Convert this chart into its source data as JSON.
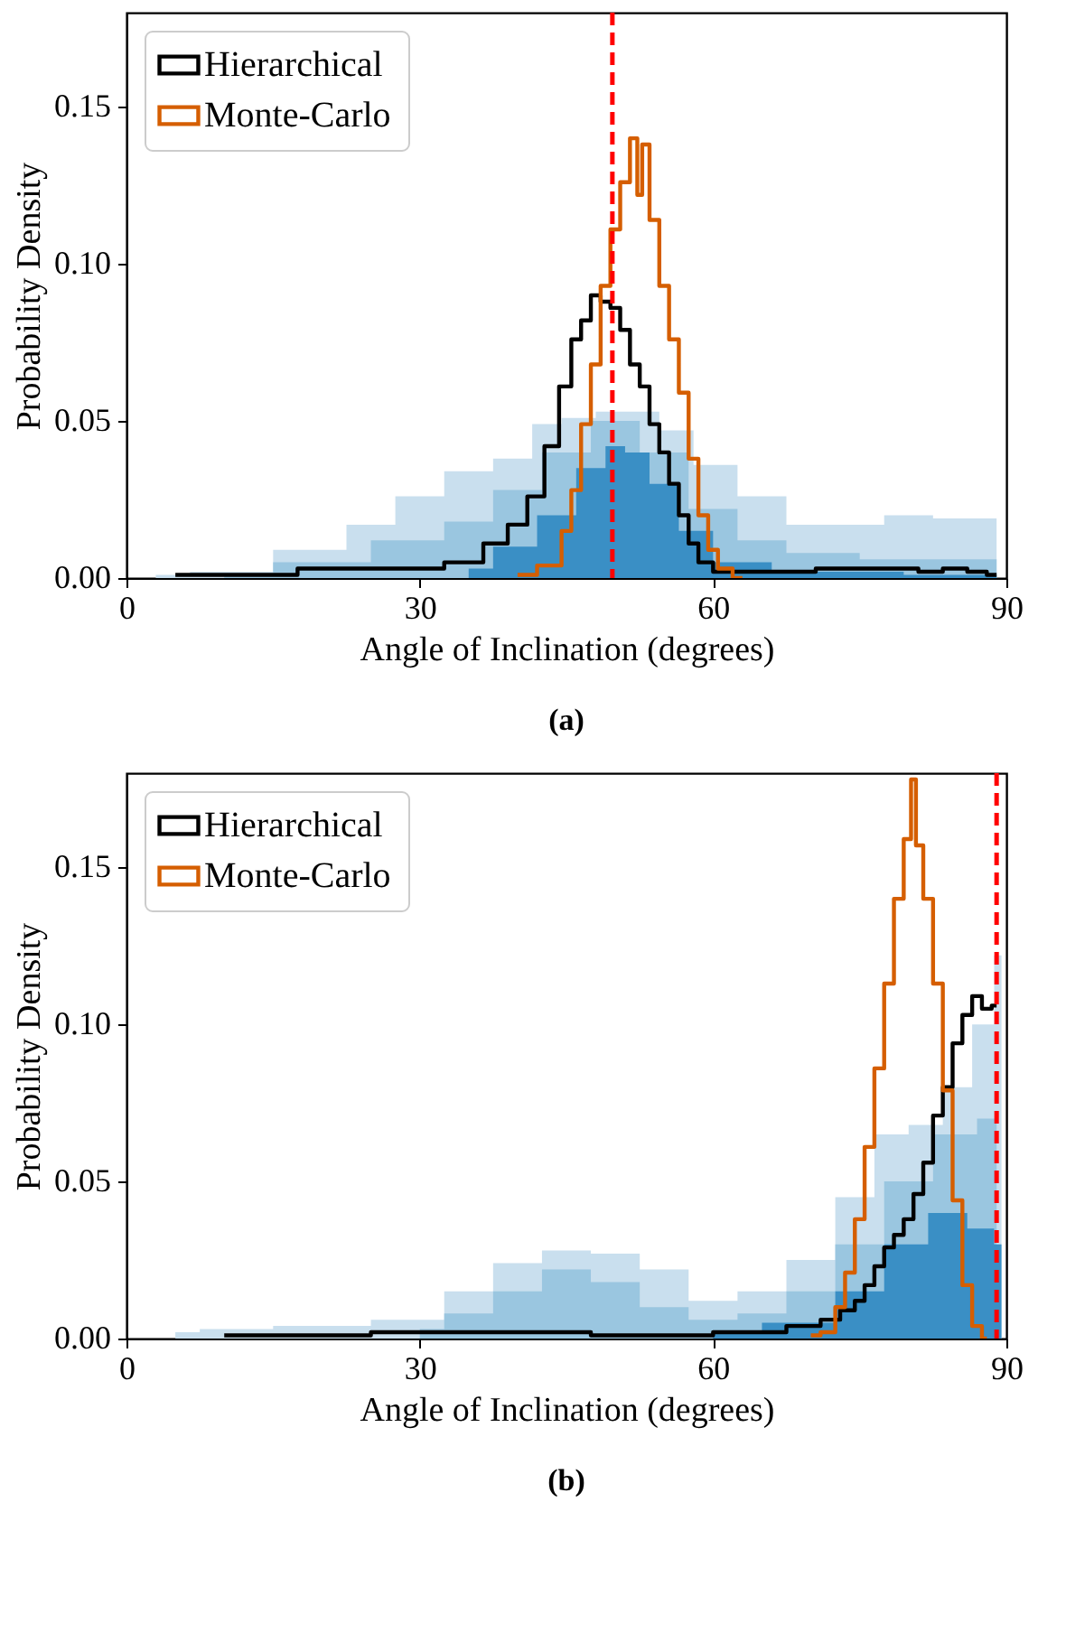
{
  "chart_data": [
    {
      "type": "step",
      "xlabel": "Angle of Inclination (degrees)",
      "ylabel": "Probability Density",
      "xlim": [
        0,
        90
      ],
      "xticks": [
        0,
        30,
        60,
        90
      ],
      "ylim": [
        0,
        0.18
      ],
      "yticks": [
        {
          "value": 0,
          "label": "0.00"
        },
        {
          "value": 0.05,
          "label": "0.05"
        },
        {
          "value": 0.1,
          "label": "0.10"
        },
        {
          "value": 0.15,
          "label": "0.15"
        }
      ],
      "legend": "top left",
      "grid": false,
      "annotations": [
        "(a)"
      ],
      "ref_lines": [
        {
          "axis": "x",
          "value": 49.7,
          "color": "#ff0000",
          "line_style": "dashed"
        }
      ],
      "series": [
        {
          "type": "area",
          "color": "#c9dfee",
          "x": [
            3,
            10,
            20,
            25,
            30,
            35,
            40,
            43,
            46,
            50,
            53,
            56,
            60,
            65,
            70,
            75,
            80,
            85,
            89
          ],
          "values": [
            0.001,
            0.002,
            0.009,
            0.017,
            0.026,
            0.034,
            0.038,
            0.049,
            0.051,
            0.053,
            0.053,
            0.047,
            0.036,
            0.026,
            0.017,
            0.017,
            0.02,
            0.019,
            0.019
          ]
        },
        {
          "type": "area",
          "color": "#9ac6e0",
          "x": [
            10,
            20,
            30,
            35,
            40,
            45,
            50,
            55,
            60,
            65,
            70,
            80,
            89
          ],
          "values": [
            0.001,
            0.005,
            0.012,
            0.018,
            0.028,
            0.04,
            0.05,
            0.04,
            0.022,
            0.012,
            0.008,
            0.006,
            0.006
          ]
        },
        {
          "type": "area",
          "color": "#3a8fc5",
          "x": [
            35,
            40,
            44,
            48,
            50,
            52,
            55,
            58,
            62,
            70,
            89
          ],
          "values": [
            0.003,
            0.01,
            0.02,
            0.035,
            0.042,
            0.04,
            0.03,
            0.015,
            0.005,
            0.002,
            0.001
          ]
        },
        {
          "type": "step",
          "name": "Hierarchical",
          "color": "#000000",
          "x": [
            5,
            30,
            35,
            38,
            40,
            42,
            43.5,
            45,
            46,
            47,
            48,
            49,
            50,
            51,
            52,
            53,
            54,
            55,
            56,
            57,
            58,
            59,
            61,
            80,
            82,
            85,
            87,
            89
          ],
          "values": [
            0.001,
            0.003,
            0.005,
            0.011,
            0.017,
            0.026,
            0.042,
            0.061,
            0.076,
            0.082,
            0.09,
            0.088,
            0.086,
            0.079,
            0.068,
            0.061,
            0.049,
            0.04,
            0.03,
            0.02,
            0.011,
            0.005,
            0.002,
            0.003,
            0.002,
            0.003,
            0.002,
            0.001
          ]
        },
        {
          "type": "step",
          "name": "Monte-Carlo",
          "color": "#d55e00",
          "x": [
            40,
            44,
            45,
            46,
            47,
            48,
            49,
            50,
            51,
            52,
            52.5,
            53,
            54,
            55,
            56,
            57,
            58,
            59,
            60,
            61,
            63
          ],
          "values": [
            0.001,
            0.004,
            0.015,
            0.028,
            0.049,
            0.068,
            0.093,
            0.111,
            0.126,
            0.14,
            0.122,
            0.138,
            0.114,
            0.093,
            0.076,
            0.059,
            0.038,
            0.02,
            0.009,
            0.003,
            0.0
          ]
        }
      ]
    },
    {
      "type": "step",
      "xlabel": "Angle of Inclination (degrees)",
      "ylabel": "Probability Density",
      "xlim": [
        0,
        90
      ],
      "xticks": [
        0,
        30,
        60,
        90
      ],
      "ylim": [
        0,
        0.18
      ],
      "yticks": [
        {
          "value": 0,
          "label": "0.00"
        },
        {
          "value": 0.05,
          "label": "0.05"
        },
        {
          "value": 0.1,
          "label": "0.10"
        },
        {
          "value": 0.15,
          "label": "0.15"
        }
      ],
      "legend": "top left",
      "grid": false,
      "annotations": [
        "(b)"
      ],
      "ref_lines": [
        {
          "axis": "x",
          "value": 89.0,
          "color": "#ff0000",
          "line_style": "dashed"
        }
      ],
      "series": [
        {
          "type": "area",
          "color": "#c9dfee",
          "x": [
            5,
            10,
            20,
            30,
            35,
            40,
            45,
            50,
            55,
            60,
            65,
            70,
            75,
            78,
            82,
            85,
            88,
            89.5
          ],
          "values": [
            0.002,
            0.003,
            0.004,
            0.006,
            0.015,
            0.024,
            0.028,
            0.027,
            0.022,
            0.012,
            0.015,
            0.025,
            0.045,
            0.065,
            0.068,
            0.08,
            0.1,
            0.122
          ]
        },
        {
          "type": "area",
          "color": "#9ac6e0",
          "x": [
            30,
            35,
            40,
            45,
            50,
            55,
            60,
            65,
            70,
            75,
            80,
            85,
            89
          ],
          "values": [
            0.003,
            0.008,
            0.015,
            0.022,
            0.018,
            0.01,
            0.006,
            0.008,
            0.015,
            0.03,
            0.05,
            0.065,
            0.07
          ]
        },
        {
          "type": "area",
          "color": "#3a8fc5",
          "x": [
            60,
            70,
            75,
            80,
            84,
            88,
            89.5
          ],
          "values": [
            0.002,
            0.005,
            0.015,
            0.03,
            0.04,
            0.035,
            0.03
          ]
        },
        {
          "type": "step",
          "name": "Hierarchical",
          "color": "#000000",
          "x": [
            10,
            40,
            55,
            65,
            70,
            72,
            74,
            75,
            76,
            77,
            78,
            79,
            80,
            81,
            82,
            83,
            84,
            85,
            86,
            87,
            88,
            89
          ],
          "values": [
            0.001,
            0.002,
            0.001,
            0.002,
            0.004,
            0.006,
            0.009,
            0.012,
            0.017,
            0.023,
            0.029,
            0.033,
            0.038,
            0.046,
            0.056,
            0.071,
            0.08,
            0.094,
            0.103,
            0.109,
            0.105,
            0.106
          ]
        },
        {
          "type": "step",
          "name": "Monte-Carlo",
          "color": "#d55e00",
          "x": [
            70,
            72,
            73,
            74,
            75,
            76,
            77,
            78,
            79,
            80,
            80.5,
            81,
            82,
            83,
            84,
            85,
            86,
            87,
            88
          ],
          "values": [
            0.001,
            0.002,
            0.01,
            0.021,
            0.038,
            0.061,
            0.086,
            0.113,
            0.14,
            0.159,
            0.178,
            0.157,
            0.14,
            0.113,
            0.079,
            0.044,
            0.017,
            0.004,
            0.0
          ]
        }
      ]
    }
  ]
}
